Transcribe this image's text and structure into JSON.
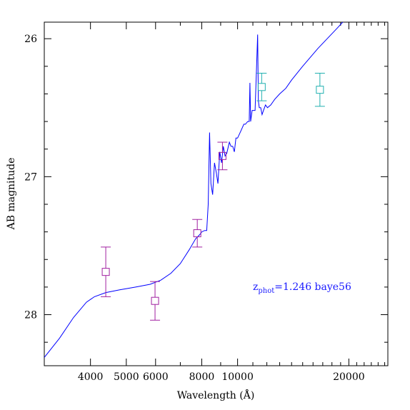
{
  "chart_data": {
    "type": "scatter",
    "xlabel": "Wavelength (Å)",
    "ylabel": "AB magnitude",
    "xscale": "log",
    "xlim": [
      3000,
      25500
    ],
    "ylim": [
      28.37,
      25.88
    ],
    "y_inverted": true,
    "x_ticks": [
      4000,
      5000,
      6000,
      8000,
      10000,
      20000
    ],
    "x_tick_labels": [
      "4000",
      "5000",
      "6000",
      "8000",
      "10000",
      "20000"
    ],
    "y_ticks": [
      26,
      27,
      28
    ],
    "y_tick_labels": [
      "26",
      "27",
      "28"
    ],
    "grid": false,
    "annotation": {
      "text_main": "z",
      "text_sub": "phot",
      "text_rest": "=1.246 baye56",
      "x": 11000,
      "y": 27.82
    },
    "series": [
      {
        "kind": "line",
        "color": "#0000ff",
        "x": [
          3000,
          3300,
          3600,
          3900,
          4100,
          4400,
          4800,
          5300,
          5800,
          6200,
          6600,
          7000,
          7400,
          7700,
          7900,
          8000,
          8150,
          8250,
          8330,
          8400,
          8470,
          8560,
          8660,
          8760,
          8850,
          8950,
          9050,
          9150,
          9250,
          9350,
          9500,
          9600,
          9700,
          9800,
          9900,
          10000,
          10200,
          10400,
          10500,
          10650,
          10750,
          10800,
          10850,
          10950,
          11150,
          11250,
          11330,
          11380,
          11450,
          11550,
          11650,
          11750,
          11900,
          12050,
          12300,
          12600,
          13000,
          13500,
          14000,
          15000,
          16500,
          18500,
          21000,
          23500,
          25500
        ],
        "y": [
          28.31,
          28.17,
          28.02,
          27.91,
          27.87,
          27.84,
          27.82,
          27.8,
          27.78,
          27.75,
          27.7,
          27.63,
          27.53,
          27.45,
          27.42,
          27.4,
          27.39,
          27.39,
          27.2,
          26.68,
          27.05,
          27.13,
          26.9,
          26.97,
          27.05,
          26.82,
          26.9,
          26.78,
          26.85,
          26.83,
          26.75,
          26.78,
          26.78,
          26.82,
          26.72,
          26.72,
          26.67,
          26.62,
          26.62,
          26.6,
          26.6,
          26.32,
          26.6,
          26.52,
          26.52,
          26.22,
          25.97,
          26.45,
          26.5,
          26.5,
          26.55,
          26.52,
          26.48,
          26.5,
          26.48,
          26.44,
          26.4,
          26.36,
          26.3,
          26.2,
          26.07,
          25.93,
          25.77,
          25.62,
          25.52
        ]
      },
      {
        "kind": "points",
        "color": "#a020a0",
        "x": [
          4400,
          5980,
          7780,
          9100
        ],
        "y": [
          27.69,
          27.9,
          27.41,
          26.85
        ],
        "err": [
          0.18,
          0.14,
          0.1,
          0.1
        ]
      },
      {
        "kind": "points",
        "color": "#20b0b0",
        "x": [
          11620,
          16700
        ],
        "y": [
          26.35,
          26.37
        ],
        "err": [
          0.1,
          0.12
        ]
      }
    ]
  }
}
